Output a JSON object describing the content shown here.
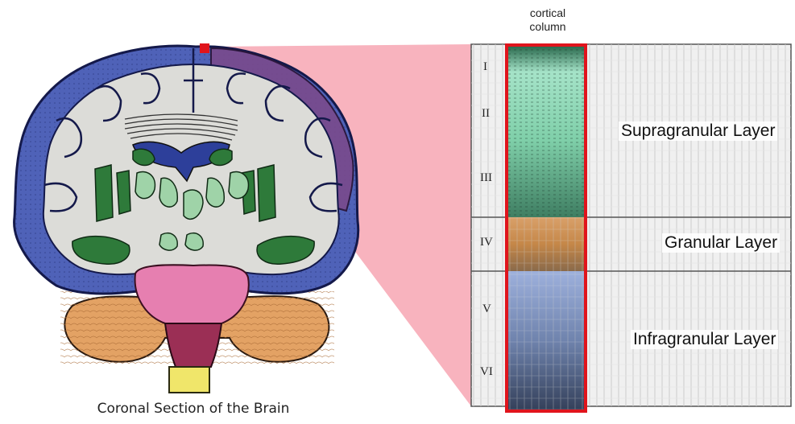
{
  "brain": {
    "caption": "Coronal Section of the Brain"
  },
  "column": {
    "caption_line1": "cortical",
    "caption_line2": "column"
  },
  "layers": {
    "numerals": [
      "I",
      "II",
      "III",
      "IV",
      "V",
      "VI"
    ],
    "supragranular": "Supragranular Layer",
    "granular": "Granular Layer",
    "infragranular": "Infragranular Layer"
  },
  "colors": {
    "cortex": "#4f62b8",
    "cortex_highlight": "#7a4a8c",
    "white_matter": "#dcdcd8",
    "nuclei": "#2e7a3a",
    "pale_nuclei": "#9fd3a8",
    "ventricle": "#2d3f9a",
    "brainstem": "#e67fb0",
    "medulla": "#9b2f55",
    "spinal": "#f0e66a",
    "cerebellum": "#e3a264",
    "zoom_wedge": "#f7a6b3",
    "column_border": "#e0141c",
    "supragranular_tint": "#7fd6b0",
    "granular_tint": "#d4914a",
    "infragranular_tint": "#6e86c4"
  }
}
